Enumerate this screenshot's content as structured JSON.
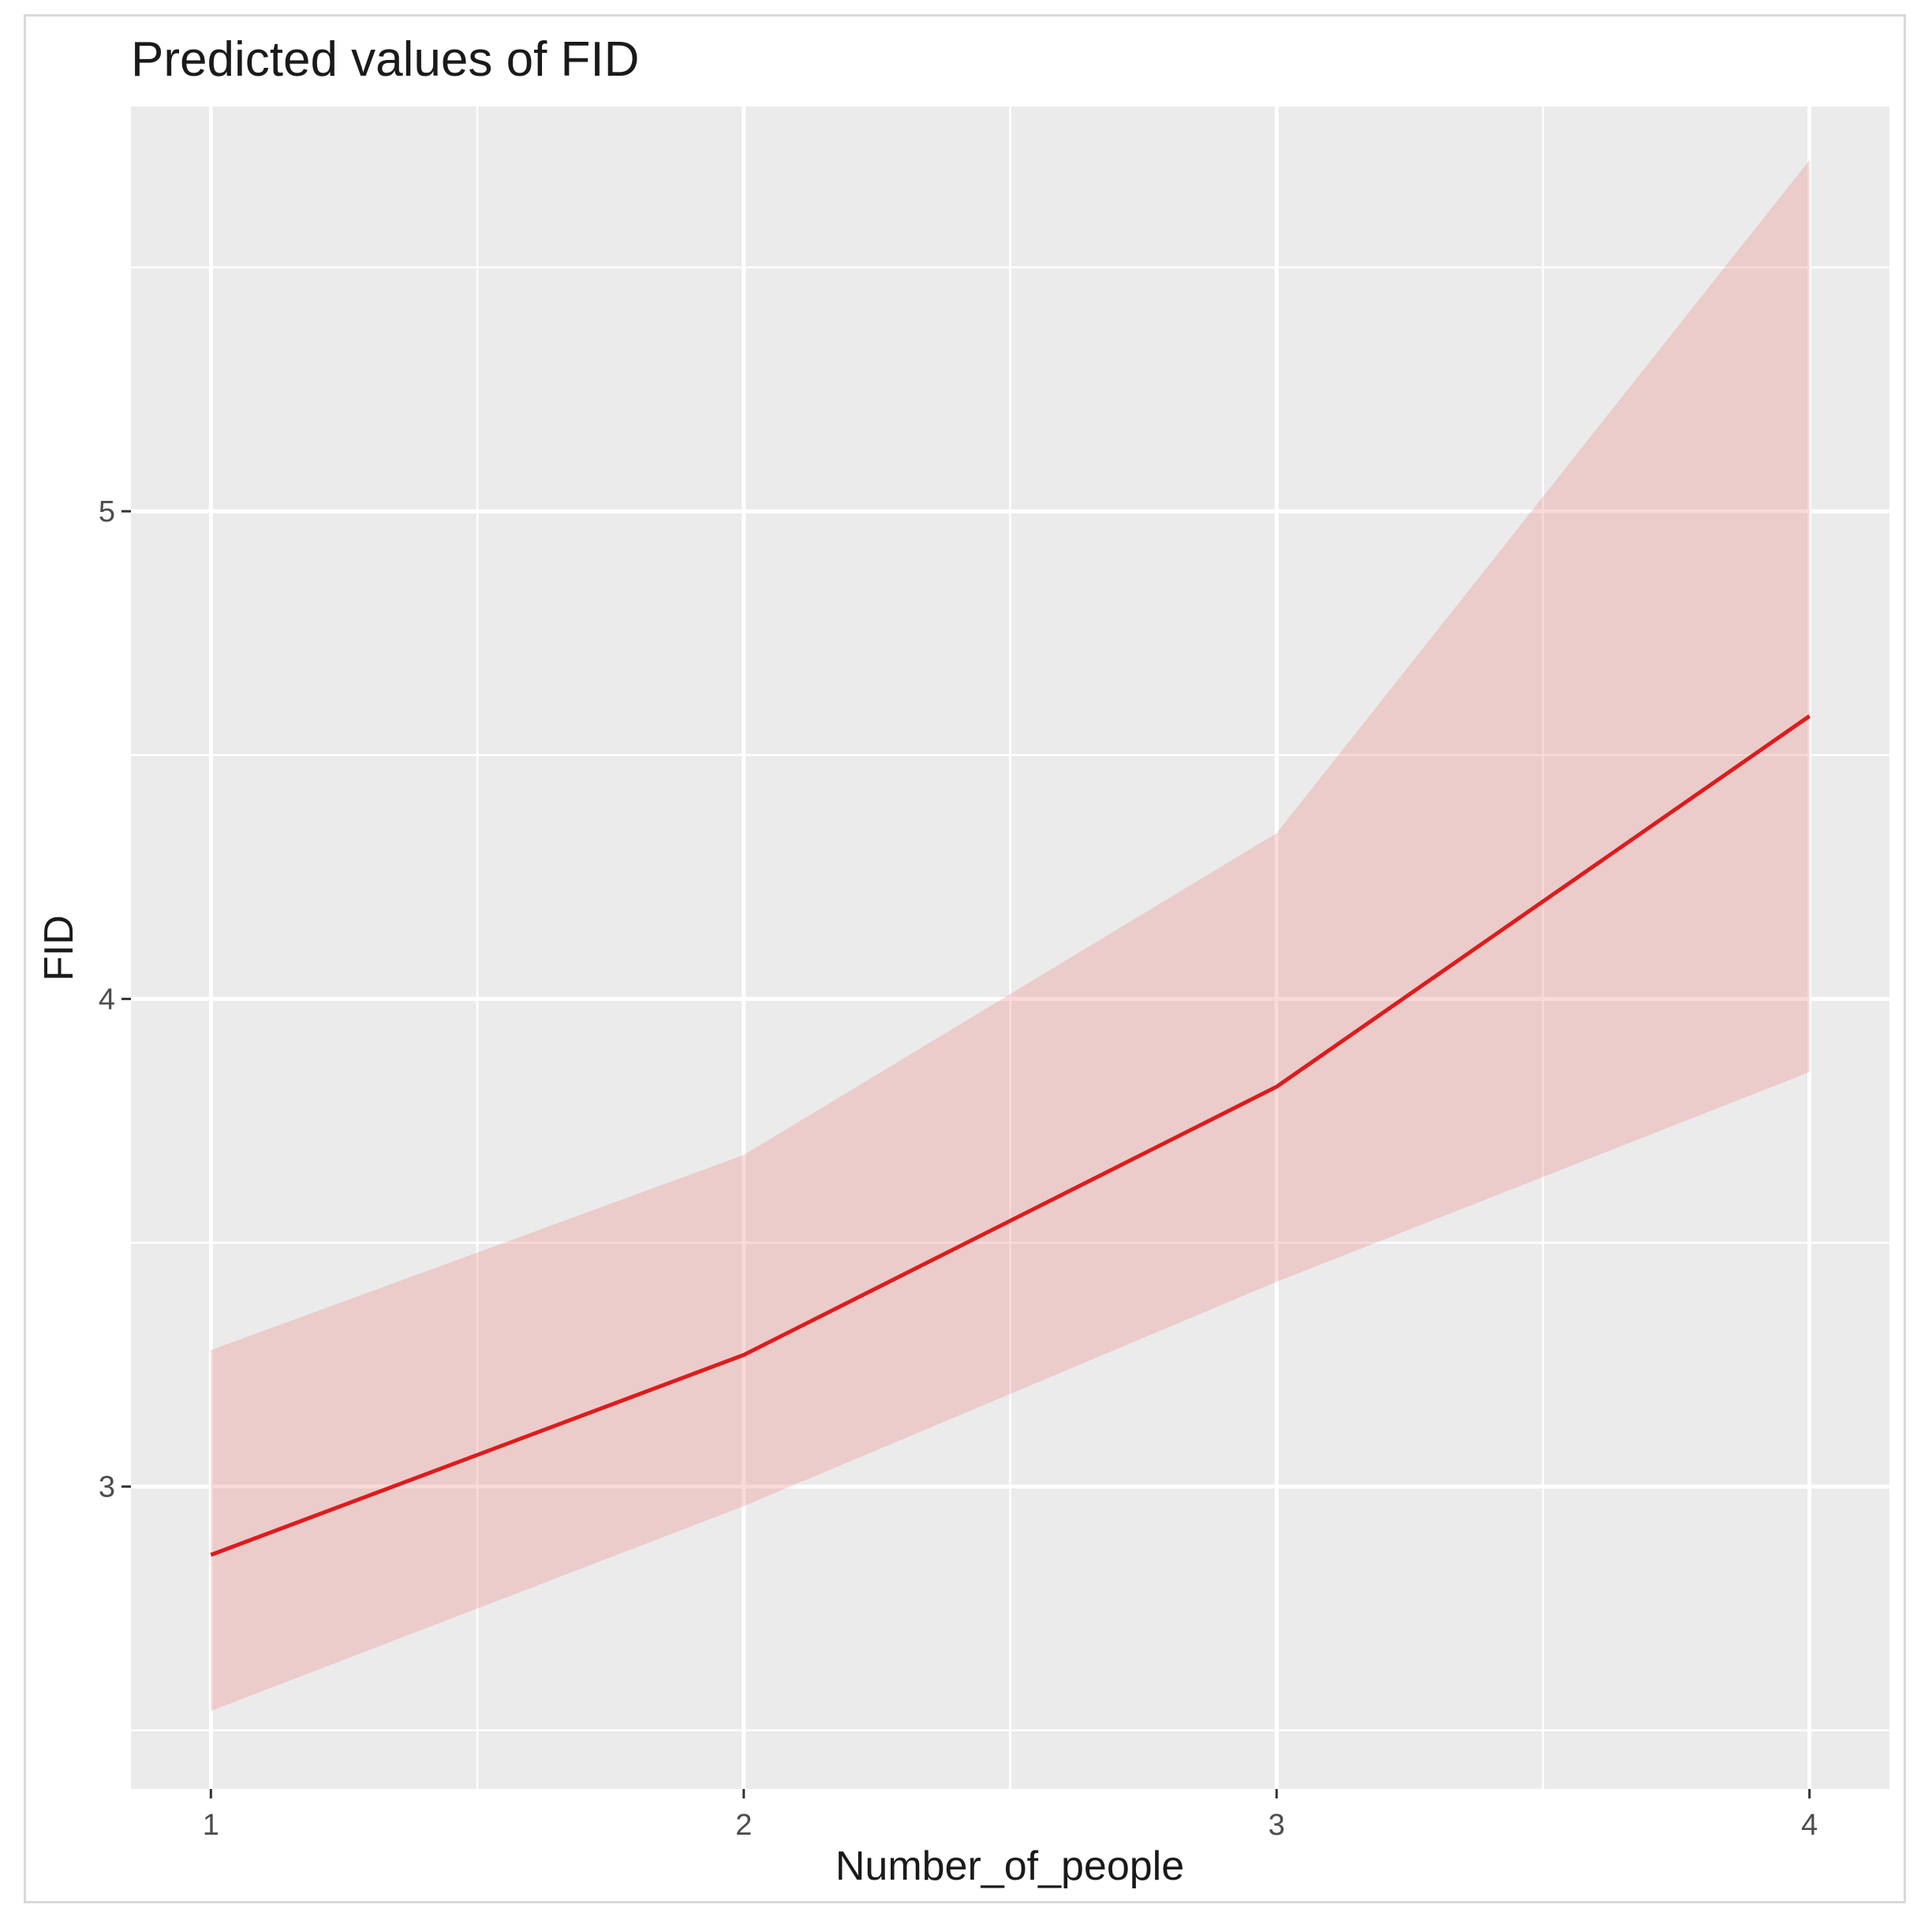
{
  "chart_data": {
    "type": "line",
    "title": "Predicted values of FID",
    "xlabel": "Number_of_people",
    "ylabel": "FID",
    "x": [
      1,
      2,
      3,
      4
    ],
    "series": [
      {
        "values": [
          2.86,
          3.27,
          3.82,
          4.58
        ],
        "lower": [
          2.54,
          2.96,
          3.42,
          3.85
        ],
        "upper": [
          3.28,
          3.68,
          4.34,
          5.72
        ],
        "color": "#dd1c1c",
        "band_color": "#f08a8a"
      }
    ],
    "xlim": [
      0.85,
      4.15
    ],
    "ylim": [
      2.38,
      5.83
    ],
    "xticks": [
      1,
      2,
      3,
      4
    ],
    "yticks": [
      3,
      4,
      5
    ],
    "grid": true,
    "panel_background": "#ebebeb",
    "grid_color": "#ffffff"
  }
}
